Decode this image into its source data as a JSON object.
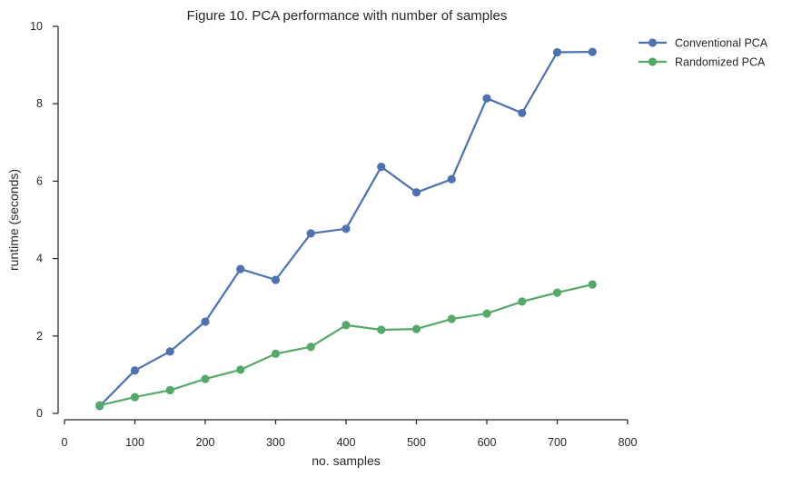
{
  "chart_data": {
    "type": "line",
    "title": "Figure 10. PCA performance with number of samples",
    "xlabel": "no. samples",
    "ylabel": "runtime (seconds)",
    "xlim": [
      0,
      800
    ],
    "ylim": [
      0,
      10
    ],
    "xticks": [
      "0",
      "100",
      "200",
      "300",
      "400",
      "500",
      "600",
      "700",
      "800"
    ],
    "yticks": [
      "0",
      "2",
      "4",
      "6",
      "8",
      "10"
    ],
    "grid": false,
    "legend_position": "top-right outside",
    "x": [
      50,
      100,
      150,
      200,
      250,
      300,
      350,
      400,
      450,
      500,
      550,
      600,
      650,
      700,
      750
    ],
    "series": [
      {
        "name": "Conventional PCA",
        "color": "#4c72b0",
        "values": [
          0.19,
          1.11,
          1.6,
          2.37,
          3.73,
          3.45,
          4.65,
          4.77,
          6.37,
          5.71,
          6.05,
          8.14,
          7.76,
          9.33,
          9.34
        ]
      },
      {
        "name": "Randomized PCA",
        "color": "#55a868",
        "values": [
          0.21,
          0.42,
          0.6,
          0.89,
          1.13,
          1.54,
          1.72,
          2.28,
          2.16,
          2.18,
          2.44,
          2.58,
          2.89,
          3.12,
          3.33
        ]
      }
    ]
  }
}
